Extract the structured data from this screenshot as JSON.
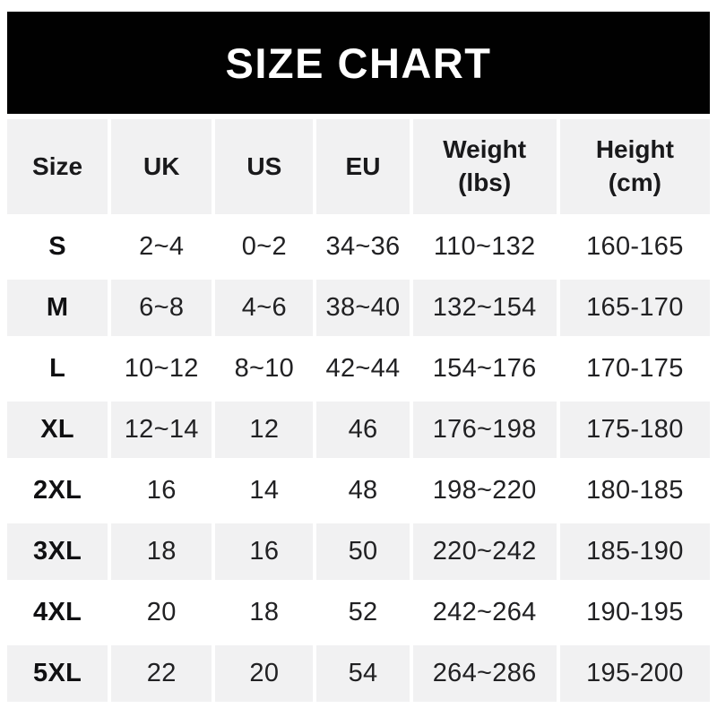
{
  "banner": {
    "title": "SIZE CHART"
  },
  "table": {
    "columns": [
      {
        "label": "Size"
      },
      {
        "label": "UK"
      },
      {
        "label": "US"
      },
      {
        "label": "EU"
      },
      {
        "label": "Weight\n(lbs)"
      },
      {
        "label": "Height\n(cm)"
      }
    ],
    "rows": [
      {
        "size": "S",
        "uk": "2~4",
        "us": "0~2",
        "eu": "34~36",
        "weight_lbs": "110~132",
        "height_cm": "160-165"
      },
      {
        "size": "M",
        "uk": "6~8",
        "us": "4~6",
        "eu": "38~40",
        "weight_lbs": "132~154",
        "height_cm": "165-170"
      },
      {
        "size": "L",
        "uk": "10~12",
        "us": "8~10",
        "eu": "42~44",
        "weight_lbs": "154~176",
        "height_cm": "170-175"
      },
      {
        "size": "XL",
        "uk": "12~14",
        "us": "12",
        "eu": "46",
        "weight_lbs": "176~198",
        "height_cm": "175-180"
      },
      {
        "size": "2XL",
        "uk": "16",
        "us": "14",
        "eu": "48",
        "weight_lbs": "198~220",
        "height_cm": "180-185"
      },
      {
        "size": "3XL",
        "uk": "18",
        "us": "16",
        "eu": "50",
        "weight_lbs": "220~242",
        "height_cm": "185-190"
      },
      {
        "size": "4XL",
        "uk": "20",
        "us": "18",
        "eu": "52",
        "weight_lbs": "242~264",
        "height_cm": "190-195"
      },
      {
        "size": "5XL",
        "uk": "22",
        "us": "20",
        "eu": "54",
        "weight_lbs": "264~286",
        "height_cm": "195-200"
      }
    ]
  },
  "colors": {
    "banner_bg": "#010101",
    "banner_text": "#ffffff",
    "row_alt_bg": "#f1f1f2",
    "data_text": "#212123"
  }
}
